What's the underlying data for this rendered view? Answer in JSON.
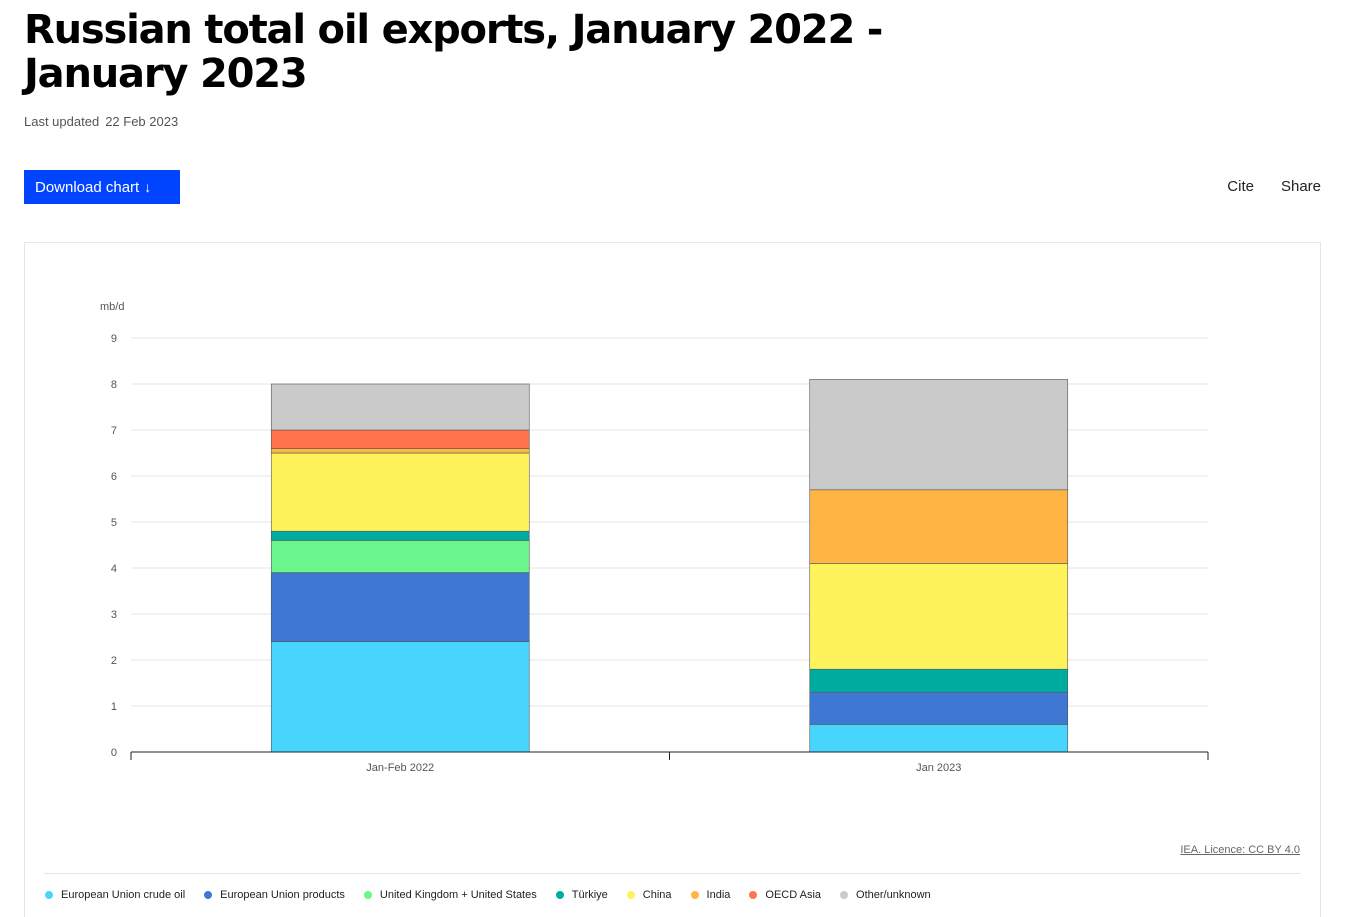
{
  "page": {
    "title": "Russian total oil exports, January 2022 - January 2023",
    "last_updated_label": "Last updated",
    "last_updated_date": "22 Feb 2023",
    "download_label": "Download chart",
    "download_icon": "arrow-down-icon",
    "cite_label": "Cite",
    "share_label": "Share",
    "licence": "IEA. Licence: CC BY 4.0"
  },
  "chart_data": {
    "type": "bar",
    "stacked": true,
    "title": "",
    "xlabel": "",
    "ylabel": "mb/d",
    "ylim": [
      0,
      9
    ],
    "yticks": [
      0,
      1,
      2,
      3,
      4,
      5,
      6,
      7,
      8,
      9
    ],
    "grid": true,
    "legend_position": "bottom",
    "categories": [
      "Jan-Feb 2022",
      "Jan 2023"
    ],
    "series": [
      {
        "name": "European Union crude oil",
        "color": "#47d5fd",
        "values": [
          2.4,
          0.6
        ]
      },
      {
        "name": "European Union products",
        "color": "#3e78d3",
        "values": [
          1.5,
          0.7
        ]
      },
      {
        "name": "United Kingdom + United States",
        "color": "#68f68d",
        "values": [
          0.7,
          0
        ]
      },
      {
        "name": "Türkiye",
        "color": "#00aba0",
        "values": [
          0.2,
          0.5
        ]
      },
      {
        "name": "China",
        "color": "#fff35b",
        "values": [
          1.7,
          2.3
        ]
      },
      {
        "name": "India",
        "color": "#ffb543",
        "values": [
          0.1,
          1.6
        ]
      },
      {
        "name": "OECD Asia",
        "color": "#ff744b",
        "values": [
          0.4,
          0
        ]
      },
      {
        "name": "Other/unknown",
        "color": "#cacaca",
        "values": [
          1.0,
          2.4
        ]
      }
    ]
  }
}
